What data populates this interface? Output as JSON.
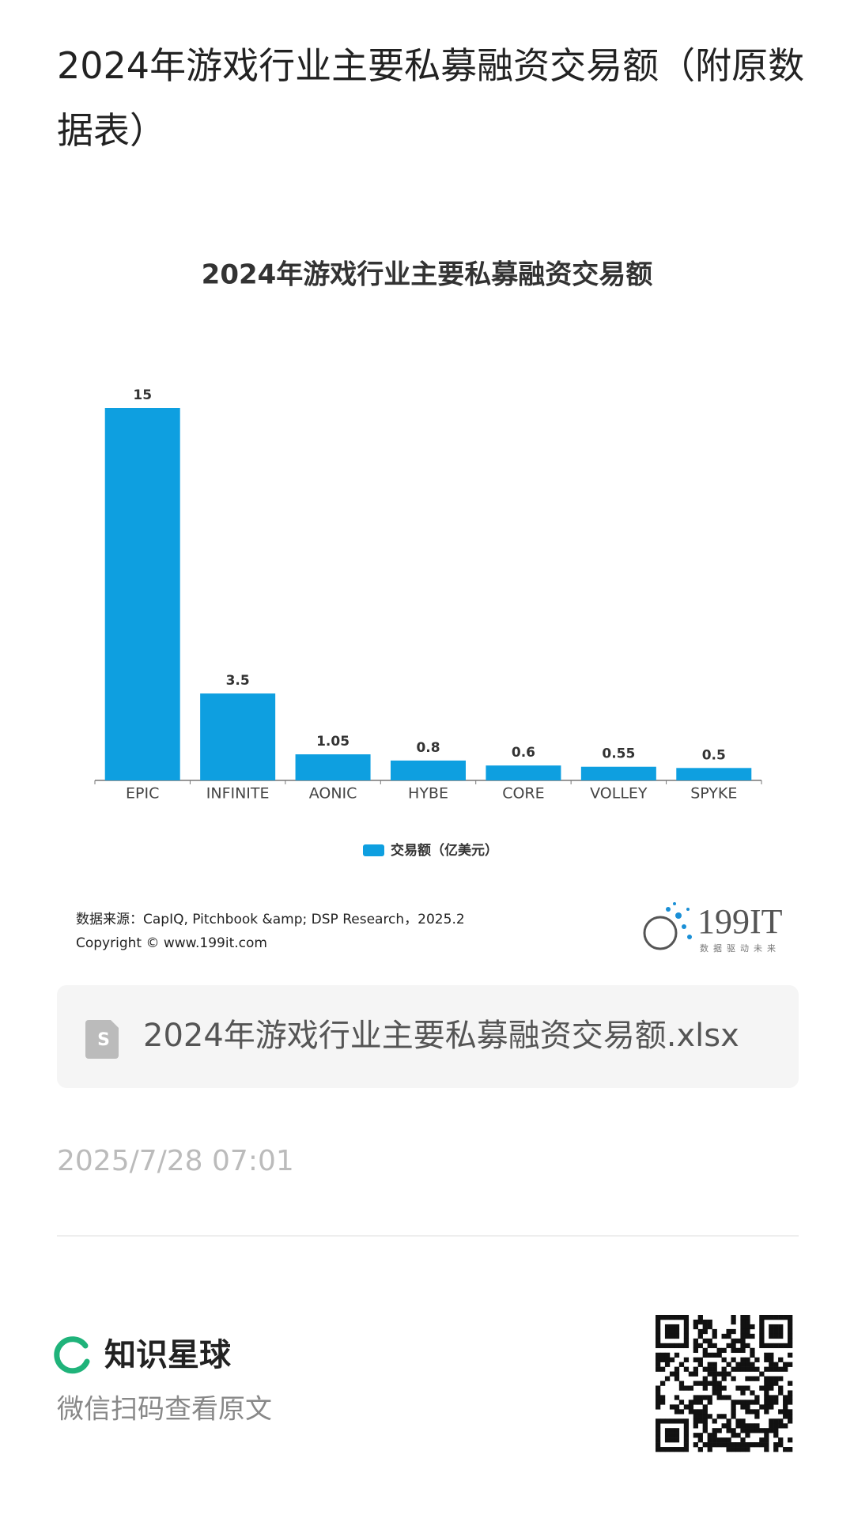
{
  "header": {
    "title": "2024年游戏行业主要私募融资交易额（附原数据表）"
  },
  "chart_data": {
    "type": "bar",
    "title": "2024年游戏行业主要私募融资交易额",
    "categories": [
      "EPIC",
      "INFINITE",
      "AONIC",
      "HYBE",
      "CORE",
      "VOLLEY",
      "SPYKE"
    ],
    "series": [
      {
        "name": "交易额（亿美元）",
        "color": "#0e9fe0",
        "values": [
          15,
          3.5,
          1.05,
          0.8,
          0.6,
          0.55,
          0.5
        ]
      }
    ],
    "source": "数据来源：CapIQ, Pitchbook &amp; DSP Research，2025.2",
    "copyright": "Copyright ©  www.199it.com",
    "logo": "199IT",
    "logo_tagline": "数据驱动未来"
  },
  "attachment": {
    "filename": "2024年游戏行业主要私募融资交易额.xlsx"
  },
  "meta": {
    "timestamp": "2025/7/28 07:01"
  },
  "footer": {
    "brand": "知识星球",
    "caption": "微信扫码查看原文"
  }
}
